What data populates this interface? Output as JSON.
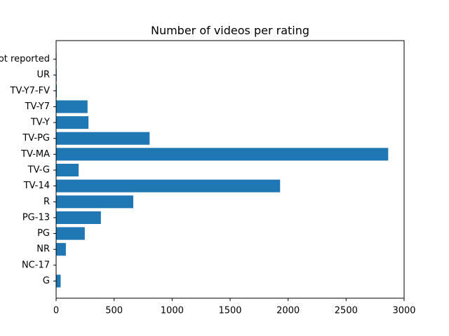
{
  "chart_data": {
    "type": "bar",
    "orientation": "horizontal",
    "title": "Number of videos per rating",
    "xlabel": "",
    "ylabel": "",
    "categories": [
      "G",
      "NC-17",
      "NR",
      "PG",
      "PG-13",
      "R",
      "TV-14",
      "TV-G",
      "TV-MA",
      "TV-PG",
      "TV-Y",
      "TV-Y7",
      "TV-Y7-FV",
      "UR",
      "Not reported"
    ],
    "values": [
      39,
      3,
      84,
      247,
      386,
      665,
      1931,
      194,
      2863,
      806,
      279,
      271,
      6,
      5,
      4
    ],
    "xlim": [
      0,
      3000
    ],
    "xticks": [
      "0",
      "500",
      "1000",
      "1500",
      "2000",
      "2500",
      "3000"
    ],
    "grid": false,
    "legend": "none",
    "bar_color": "#1f77b4"
  }
}
